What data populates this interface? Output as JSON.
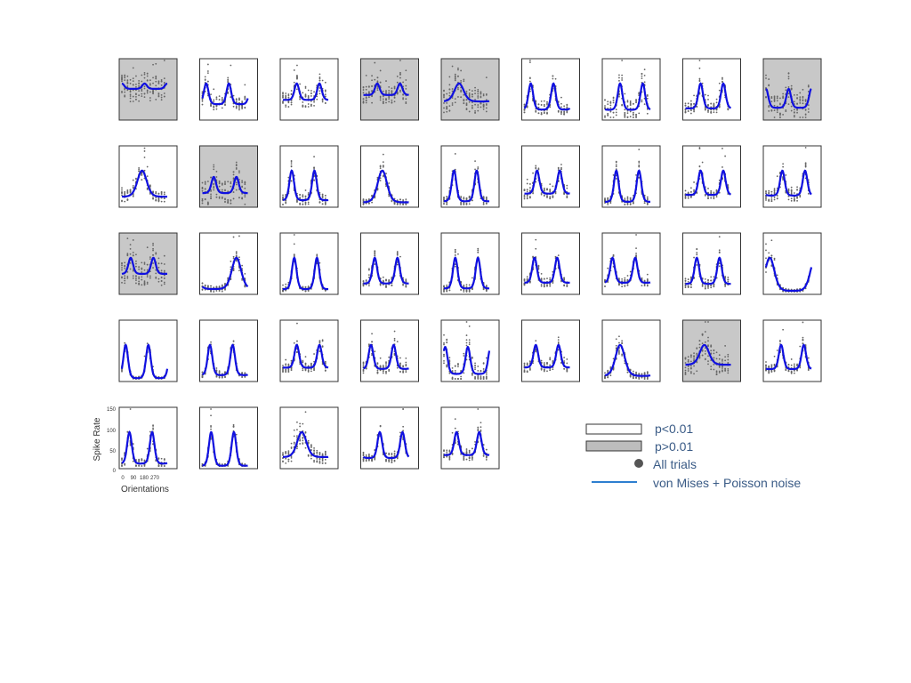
{
  "chart_data": {
    "type": "scatter",
    "description_axis": {
      "xlabel": "Orientations",
      "ylabel": "Spike Rate",
      "xticks": [
        "0",
        "90",
        "180",
        "270"
      ],
      "yticks": [
        "0",
        "50",
        "100",
        "150"
      ],
      "xlim": [
        0,
        360
      ],
      "ylim": [
        0,
        150
      ]
    },
    "colors": {
      "significant_bg": "#ffffff",
      "nonsignificant_bg": "#c8c8c8",
      "trials": "#666666",
      "fit": "#1010e0",
      "legend_line": "#2d7fd0",
      "legend_dot": "#555555"
    },
    "legend": {
      "significant": "p<0.01",
      "nonsignificant": "p>0.01",
      "trials": "All trials",
      "fit": "von Mises + Poisson noise"
    },
    "panels": [
      {
        "significant": false,
        "fit": {
          "base": 45,
          "amp": 3,
          "phase": 0,
          "twoPeaks": true
        }
      },
      {
        "significant": true,
        "fit": {
          "base": 45,
          "amp": 25,
          "phase": 30,
          "twoPeaks": true
        }
      },
      {
        "significant": true,
        "fit": {
          "base": 45,
          "amp": 15,
          "phase": 110,
          "twoPeaks": true
        }
      },
      {
        "significant": false,
        "fit": {
          "base": 55,
          "amp": 10,
          "phase": 110,
          "twoPeaks": true
        }
      },
      {
        "significant": false,
        "fit": {
          "base": 20,
          "amp": 8,
          "phase": 120,
          "twoPeaks": false
        }
      },
      {
        "significant": true,
        "fit": {
          "base": 25,
          "amp": 30,
          "phase": 50,
          "twoPeaks": true
        }
      },
      {
        "significant": true,
        "fit": {
          "base": 8,
          "amp": 10,
          "phase": 120,
          "twoPeaks": true
        }
      },
      {
        "significant": true,
        "fit": {
          "base": 30,
          "amp": 30,
          "phase": 120,
          "twoPeaks": true
        }
      },
      {
        "significant": false,
        "fit": {
          "base": 10,
          "amp": 7,
          "phase": 180,
          "twoPeaks": true
        }
      },
      {
        "significant": true,
        "fit": {
          "base": 25,
          "amp": 30,
          "phase": 160,
          "twoPeaks": false
        }
      },
      {
        "significant": false,
        "fit": {
          "base": 12,
          "amp": 6,
          "phase": 90,
          "twoPeaks": true
        }
      },
      {
        "significant": true,
        "fit": {
          "base": 10,
          "amp": 25,
          "phase": 70,
          "twoPeaks": true
        }
      },
      {
        "significant": true,
        "fit": {
          "base": 8,
          "amp": 45,
          "phase": 150,
          "twoPeaks": false
        }
      },
      {
        "significant": true,
        "fit": {
          "base": 10,
          "amp": 35,
          "phase": 80,
          "twoPeaks": true
        }
      },
      {
        "significant": true,
        "fit": {
          "base": 40,
          "amp": 30,
          "phase": 100,
          "twoPeaks": true
        }
      },
      {
        "significant": true,
        "fit": {
          "base": 8,
          "amp": 35,
          "phase": 90,
          "twoPeaks": true
        }
      },
      {
        "significant": true,
        "fit": {
          "base": 50,
          "amp": 45,
          "phase": 120,
          "twoPeaks": true
        }
      },
      {
        "significant": true,
        "fit": {
          "base": 25,
          "amp": 25,
          "phase": 130,
          "twoPeaks": true
        }
      },
      {
        "significant": false,
        "fit": {
          "base": 25,
          "amp": 8,
          "phase": 70,
          "twoPeaks": true
        }
      },
      {
        "significant": true,
        "fit": {
          "base": 10,
          "amp": 45,
          "phase": 270,
          "twoPeaks": false
        }
      },
      {
        "significant": true,
        "fit": {
          "base": 15,
          "amp": 70,
          "phase": 90,
          "twoPeaks": true
        }
      },
      {
        "significant": true,
        "fit": {
          "base": 40,
          "amp": 45,
          "phase": 90,
          "twoPeaks": true
        }
      },
      {
        "significant": true,
        "fit": {
          "base": 10,
          "amp": 35,
          "phase": 90,
          "twoPeaks": true
        }
      },
      {
        "significant": true,
        "fit": {
          "base": 40,
          "amp": 40,
          "phase": 80,
          "twoPeaks": true
        }
      },
      {
        "significant": true,
        "fit": {
          "base": 45,
          "amp": 45,
          "phase": 60,
          "twoPeaks": true
        }
      },
      {
        "significant": true,
        "fit": {
          "base": 25,
          "amp": 30,
          "phase": 90,
          "twoPeaks": true
        }
      },
      {
        "significant": true,
        "fit": {
          "base": 5,
          "amp": 90,
          "phase": 30,
          "twoPeaks": false
        }
      },
      {
        "significant": true,
        "fit": {
          "base": 5,
          "amp": 120,
          "phase": 30,
          "twoPeaks": true
        }
      },
      {
        "significant": true,
        "fit": {
          "base": 20,
          "amp": 60,
          "phase": 60,
          "twoPeaks": true
        }
      },
      {
        "significant": true,
        "fit": {
          "base": 55,
          "amp": 40,
          "phase": 110,
          "twoPeaks": true
        }
      },
      {
        "significant": true,
        "fit": {
          "base": 35,
          "amp": 30,
          "phase": 60,
          "twoPeaks": true
        }
      },
      {
        "significant": true,
        "fit": {
          "base": 5,
          "amp": 10,
          "phase": 10,
          "twoPeaks": true
        }
      },
      {
        "significant": true,
        "fit": {
          "base": 50,
          "amp": 35,
          "phase": 90,
          "twoPeaks": true
        }
      },
      {
        "significant": true,
        "fit": {
          "base": 10,
          "amp": 40,
          "phase": 120,
          "twoPeaks": false
        }
      },
      {
        "significant": false,
        "fit": {
          "base": 20,
          "amp": 10,
          "phase": 150,
          "twoPeaks": false
        }
      },
      {
        "significant": true,
        "fit": {
          "base": 45,
          "amp": 40,
          "phase": 120,
          "twoPeaks": true
        }
      },
      {
        "significant": true,
        "fit": {
          "base": 5,
          "amp": 25,
          "phase": 60,
          "twoPeaks": true
        }
      },
      {
        "significant": true,
        "fit": {
          "base": 0,
          "amp": 55,
          "phase": 70,
          "twoPeaks": true
        }
      },
      {
        "significant": true,
        "fit": {
          "base": 20,
          "amp": 20,
          "phase": 150,
          "twoPeaks": false
        }
      },
      {
        "significant": true,
        "fit": {
          "base": 30,
          "amp": 35,
          "phase": 130,
          "twoPeaks": true
        }
      },
      {
        "significant": true,
        "fit": {
          "base": 40,
          "amp": 30,
          "phase": 100,
          "twoPeaks": true
        }
      }
    ]
  }
}
